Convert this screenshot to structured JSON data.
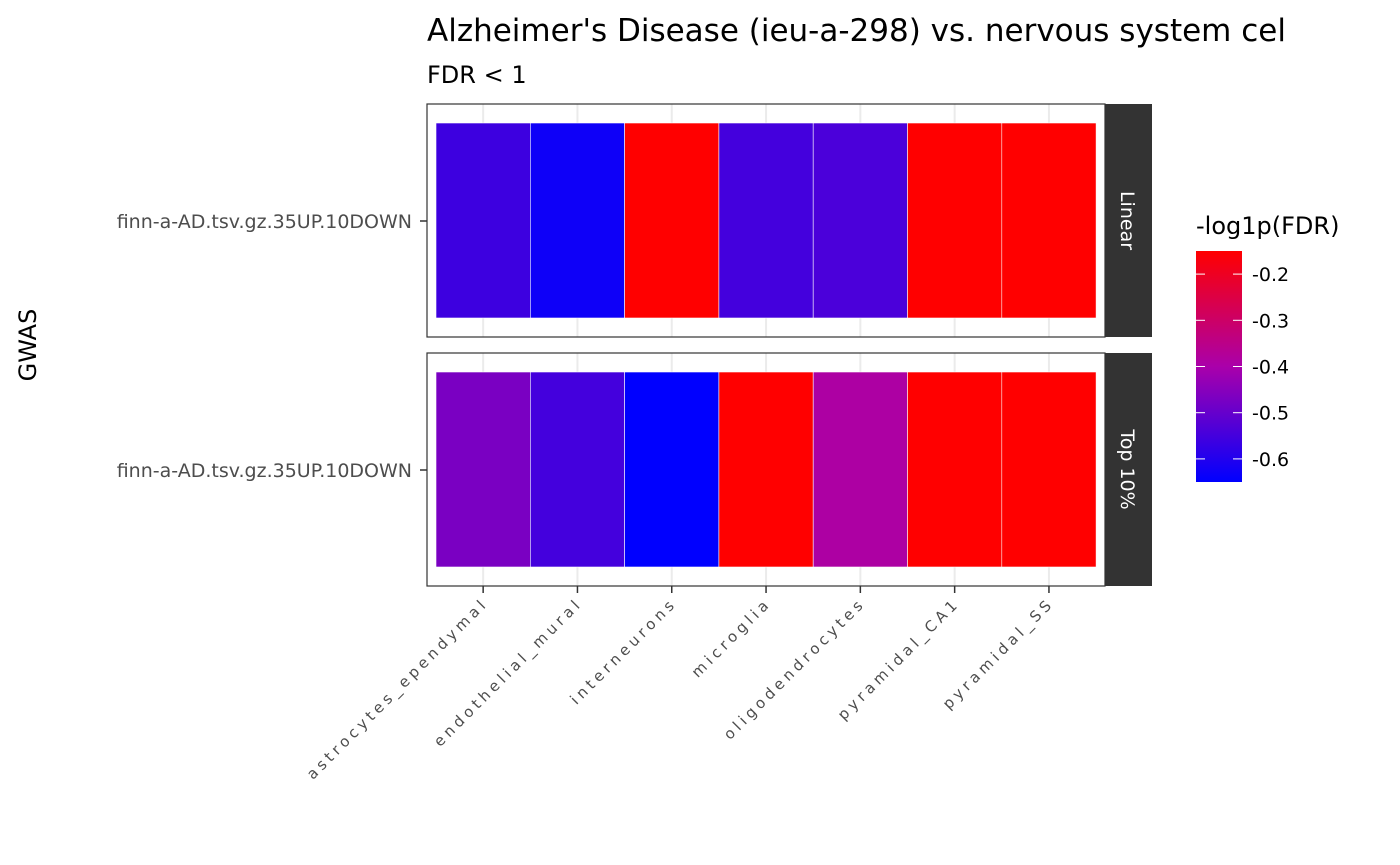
{
  "chart_data": {
    "type": "heatmap",
    "title": "Alzheimer's Disease (ieu-a-298) vs. nervous system cel",
    "subtitle": "FDR < 1",
    "ylabel": "GWAS",
    "xlabel": "",
    "categories": [
      "astrocytes_ependymal",
      "endothelial_mural",
      "interneurons",
      "microglia",
      "oligodendrocytes",
      "pyramidal_CA1",
      "pyramidal_SS"
    ],
    "facets": [
      {
        "label": "Linear",
        "row_label": "finn-a-AD.tsv.gz.35UP.10DOWN",
        "values": [
          -0.56,
          -0.63,
          -0.15,
          -0.55,
          -0.54,
          -0.15,
          -0.15
        ]
      },
      {
        "label": "Top 10%",
        "row_label": "finn-a-AD.tsv.gz.35UP.10DOWN",
        "values": [
          -0.47,
          -0.55,
          -0.65,
          -0.15,
          -0.39,
          -0.15,
          -0.15
        ]
      }
    ],
    "legend": {
      "title": "-log1p(FDR)",
      "ticks": [
        -0.2,
        -0.3,
        -0.4,
        -0.5,
        -0.6
      ],
      "tick_labels": [
        "-0.2",
        "-0.3",
        "-0.4",
        "-0.5",
        "-0.6"
      ],
      "range": [
        -0.65,
        -0.15
      ],
      "low_color": "#0000ff",
      "high_color": "#ff0000",
      "position": "right"
    },
    "grid": true
  }
}
